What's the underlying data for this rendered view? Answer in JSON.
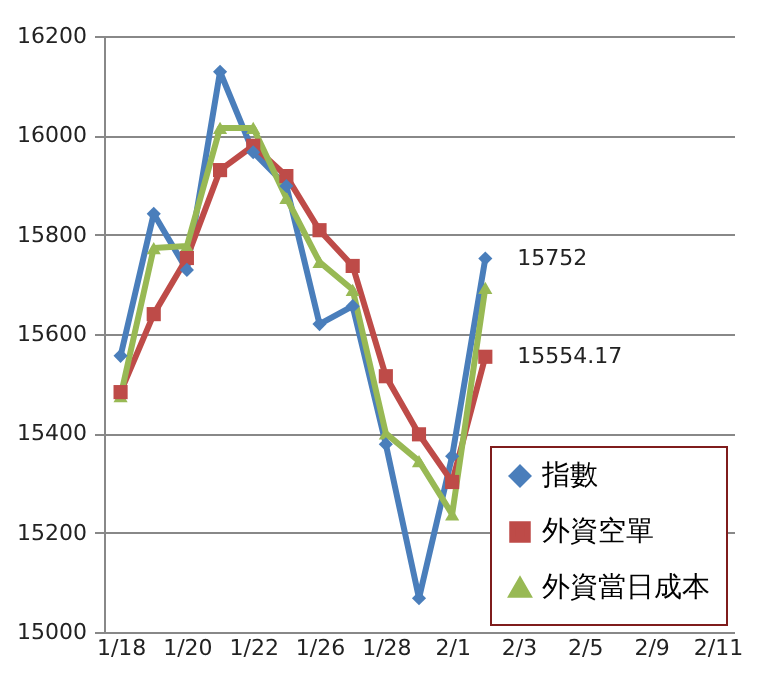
{
  "chart_data": {
    "type": "line",
    "categories": [
      "1/18",
      null,
      "1/20",
      null,
      "1/22",
      null,
      "1/26",
      null,
      "1/28",
      null,
      "2/1",
      null,
      "2/3",
      null,
      "2/5",
      null,
      "2/9",
      null,
      "2/11"
    ],
    "series": [
      {
        "name": "指數",
        "color": "#4a7ebb",
        "marker": "diamond",
        "values": [
          15556,
          15842,
          15729,
          16128,
          15966,
          15898,
          15620,
          15656,
          15378,
          15068,
          15354,
          15752,
          null,
          null,
          null,
          null,
          null,
          null,
          null
        ],
        "value_labels": [
          null,
          null,
          null,
          null,
          null,
          null,
          null,
          null,
          null,
          null,
          null,
          "15752",
          null,
          null,
          null,
          null,
          null,
          null,
          null
        ]
      },
      {
        "name": "外資空單",
        "color": "#be4b48",
        "marker": "square",
        "values": [
          15483,
          15640,
          15753,
          15930,
          15979,
          15918,
          15809,
          15737,
          15515,
          15398,
          15302,
          15554.17,
          null,
          null,
          null,
          null,
          null,
          null,
          null
        ],
        "value_labels": [
          null,
          null,
          null,
          null,
          null,
          null,
          null,
          null,
          null,
          null,
          null,
          "15554.17",
          null,
          null,
          null,
          null,
          null,
          null,
          null
        ]
      },
      {
        "name": "外資當日成本",
        "color": "#98b954",
        "marker": "triangle",
        "values": [
          15475,
          15773,
          15777,
          16015,
          16015,
          15874,
          15745,
          15689,
          15400,
          15344,
          15237,
          15693,
          null,
          null,
          null,
          null,
          null,
          null,
          null
        ]
      }
    ],
    "ylim": [
      15000,
      16200
    ],
    "yticks": [
      15000,
      15200,
      15400,
      15600,
      15800,
      16000,
      16200
    ],
    "grid": "y",
    "legend": "bottom right"
  }
}
